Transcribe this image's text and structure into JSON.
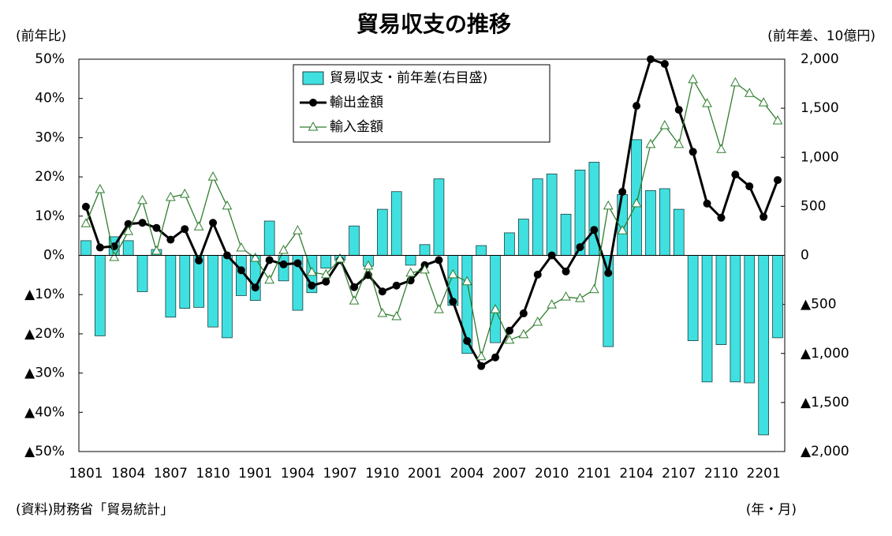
{
  "chart_data": {
    "type": "bar_line",
    "title": "貿易収支の推移",
    "y_label": "(前年比)",
    "y2_label": "(前年差、10億円)",
    "x_label": "(年・月)",
    "source": "(資料)財務省「貿易統計」",
    "categories": [
      "1801",
      null,
      null,
      "1804",
      null,
      null,
      "1807",
      null,
      null,
      "1810",
      null,
      null,
      "1901",
      null,
      null,
      "1904",
      null,
      null,
      "1907",
      null,
      null,
      "1910",
      null,
      null,
      "2001",
      null,
      null,
      "2004",
      null,
      null,
      "2007",
      null,
      null,
      "2010",
      null,
      null,
      "2101",
      null,
      null,
      "2104",
      null,
      null,
      "2107",
      null,
      null,
      "2110",
      null,
      null,
      "2201",
      null
    ],
    "ylim": [
      -50,
      50
    ],
    "yticks": [
      {
        "value": 50,
        "label": "50%"
      },
      {
        "value": 40,
        "label": "40%"
      },
      {
        "value": 30,
        "label": "30%"
      },
      {
        "value": 20,
        "label": "20%"
      },
      {
        "value": 10,
        "label": "10%"
      },
      {
        "value": 0,
        "label": "0%"
      },
      {
        "value": -10,
        "label": "▲10%"
      },
      {
        "value": -20,
        "label": "▲20%"
      },
      {
        "value": -30,
        "label": "▲30%"
      },
      {
        "value": -40,
        "label": "▲40%"
      },
      {
        "value": -50,
        "label": "▲50%"
      }
    ],
    "y2lim": [
      -2000,
      2000
    ],
    "y2ticks": [
      {
        "value": 2000,
        "label": "2,000"
      },
      {
        "value": 1500,
        "label": "1,500"
      },
      {
        "value": 1000,
        "label": "1,000"
      },
      500,
      0,
      {
        "value": -500,
        "label": "▲500"
      },
      {
        "value": -1000,
        "label": "▲1,000"
      },
      {
        "value": -1500,
        "label": "▲1,500"
      },
      {
        "value": -2000,
        "label": "▲2,000"
      }
    ],
    "legend": "top",
    "series": [
      {
        "name": "貿易収支・前年差(右目盛)",
        "type": "bar",
        "axis": "y2",
        "color": "#40e0e0",
        "values": [
          150,
          -820,
          190,
          150,
          -370,
          60,
          -630,
          -540,
          -530,
          -730,
          -840,
          -410,
          -460,
          350,
          -260,
          -560,
          -380,
          -130,
          -50,
          300,
          -110,
          470,
          650,
          -100,
          110,
          780,
          -510,
          -1000,
          100,
          -890,
          230,
          370,
          780,
          830,
          420,
          870,
          950,
          -930,
          620,
          1180,
          660,
          680,
          470,
          -870,
          -1290,
          -910,
          -1290,
          -1300,
          -1830,
          -840
        ]
      },
      {
        "name": "輸出金額",
        "type": "line",
        "color": "#000000",
        "values": [
          12.4,
          2,
          2.3,
          8,
          8.3,
          7,
          4,
          6.7,
          -1.3,
          8.3,
          0,
          -3.8,
          -8.2,
          -1.2,
          -2.3,
          -2,
          -7.7,
          -6.7,
          -1.2,
          -8.1,
          -5,
          -9.2,
          -7.7,
          -6.4,
          -2.5,
          -1.2,
          -11.8,
          -21.8,
          -28.2,
          -26,
          -19.2,
          -14.8,
          -4.9,
          0,
          -4.1,
          2.1,
          6.5,
          -4.5,
          16.2,
          38.1,
          50,
          48.8,
          37.1,
          26.4,
          13.2,
          9.6,
          20.6,
          17.6,
          9.8,
          19.2
        ]
      },
      {
        "name": "輸入金額",
        "type": "line",
        "color": "#2e7d2e",
        "values": [
          8.1,
          16.8,
          -0.5,
          6.1,
          14,
          1.1,
          14.8,
          15.6,
          7.3,
          20,
          12.6,
          1.9,
          -0.7,
          -6.3,
          1.3,
          6.3,
          -4.3,
          -4.9,
          -0.9,
          -11.6,
          -2.7,
          -14.8,
          -15.6,
          -4.5,
          -3.7,
          -13.8,
          -4.9,
          -6.7,
          -25.8,
          -13.8,
          -21.6,
          -20.2,
          -17,
          -12.6,
          -10.6,
          -11,
          -8.7,
          12.6,
          6.3,
          13.2,
          28.3,
          33.1,
          28.3,
          44.8,
          38.7,
          27,
          44,
          41.3,
          38.9,
          34.3
        ]
      }
    ]
  }
}
